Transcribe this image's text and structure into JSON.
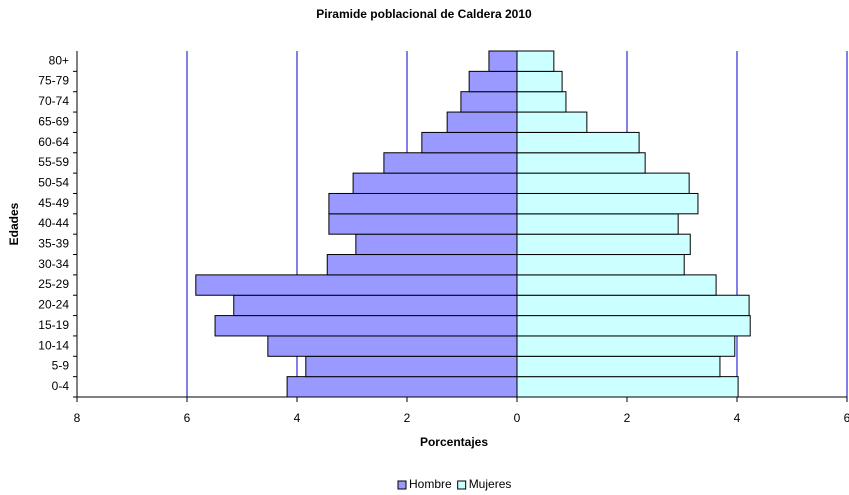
{
  "chart_data": {
    "type": "bar",
    "orientation": "horizontal",
    "title": "Piramide poblacional de Caldera 2010",
    "xlabel": "Porcentajes",
    "ylabel": "Edades",
    "categories": [
      "0-4",
      "5-9",
      "10-14",
      "15-19",
      "20-24",
      "25-29",
      "30-34",
      "35-39",
      "40-44",
      "45-49",
      "50-54",
      "55-59",
      "60-64",
      "65-69",
      "70-74",
      "75-79",
      "80+"
    ],
    "series": [
      {
        "name": "Hombre",
        "color": "#9999ff",
        "values": [
          -4.18,
          -3.84,
          -4.53,
          -5.49,
          -5.15,
          -5.84,
          -3.45,
          -2.93,
          -3.42,
          -3.42,
          -2.98,
          -2.42,
          -1.73,
          -1.27,
          -1.02,
          -0.87,
          -0.51
        ]
      },
      {
        "name": "Mujeres",
        "color": "#ccffff",
        "values": [
          4.02,
          3.69,
          3.96,
          4.24,
          4.22,
          3.62,
          3.04,
          3.15,
          2.93,
          3.29,
          3.13,
          2.33,
          2.22,
          1.27,
          0.89,
          0.82,
          0.67
        ]
      }
    ],
    "xlim": [
      -8,
      6
    ],
    "xticks": [
      {
        "value": -8,
        "label": "8"
      },
      {
        "value": -6,
        "label": "6"
      },
      {
        "value": -4,
        "label": "4"
      },
      {
        "value": -2,
        "label": "2"
      },
      0,
      2,
      4,
      6
    ],
    "grid": true,
    "grid_color": "#0000cc",
    "legend": "bottom"
  }
}
